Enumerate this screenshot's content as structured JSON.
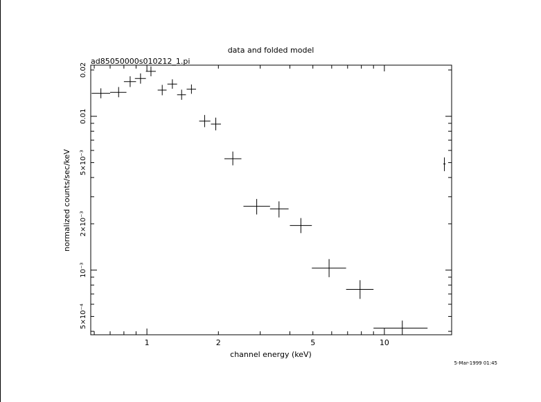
{
  "chart_data": {
    "type": "scatter",
    "title": "data and folded model",
    "subtitle": "ad85050000s010212_1.pi",
    "xlabel": "channel energy (keV)",
    "ylabel": "normalized counts/sec/keV",
    "xscale": "log",
    "yscale": "log",
    "xlim": [
      0.58,
      19.2
    ],
    "ylim": [
      0.00038,
      0.0215
    ],
    "x_ticks": [
      {
        "value": 1,
        "label": "1"
      },
      {
        "value": 2,
        "label": "2"
      },
      {
        "value": 5,
        "label": "5"
      },
      {
        "value": 10,
        "label": "10"
      }
    ],
    "y_ticks": [
      {
        "value": 0.0005,
        "label": "5×10⁻⁴"
      },
      {
        "value": 0.001,
        "label": "10⁻³"
      },
      {
        "value": 0.002,
        "label": "2×10⁻³"
      },
      {
        "value": 0.005,
        "label": "5×10⁻³"
      },
      {
        "value": 0.01,
        "label": "0.01"
      },
      {
        "value": 0.02,
        "label": "0.02"
      }
    ],
    "series": [
      {
        "points": [
          {
            "x": 0.64,
            "xlo": 0.585,
            "xhi": 0.7,
            "y": 0.0141,
            "ylo": 0.0131,
            "yhi": 0.0152
          },
          {
            "x": 0.76,
            "xlo": 0.7,
            "xhi": 0.82,
            "y": 0.0143,
            "ylo": 0.0133,
            "yhi": 0.0155
          },
          {
            "x": 0.85,
            "xlo": 0.8,
            "xhi": 0.9,
            "y": 0.0168,
            "ylo": 0.0155,
            "yhi": 0.0182
          },
          {
            "x": 0.94,
            "xlo": 0.89,
            "xhi": 0.99,
            "y": 0.0176,
            "ylo": 0.0163,
            "yhi": 0.019
          },
          {
            "x": 1.04,
            "xlo": 0.99,
            "xhi": 1.09,
            "y": 0.0196,
            "ylo": 0.0182,
            "yhi": 0.0211
          },
          {
            "x": 1.16,
            "xlo": 1.11,
            "xhi": 1.21,
            "y": 0.0148,
            "ylo": 0.0137,
            "yhi": 0.016
          },
          {
            "x": 1.28,
            "xlo": 1.22,
            "xhi": 1.34,
            "y": 0.0162,
            "ylo": 0.0151,
            "yhi": 0.0174
          },
          {
            "x": 1.4,
            "xlo": 1.34,
            "xhi": 1.46,
            "y": 0.0138,
            "ylo": 0.0128,
            "yhi": 0.0149
          },
          {
            "x": 1.54,
            "xlo": 1.47,
            "xhi": 1.61,
            "y": 0.015,
            "ylo": 0.014,
            "yhi": 0.0161
          },
          {
            "x": 1.75,
            "xlo": 1.66,
            "xhi": 1.85,
            "y": 0.0093,
            "ylo": 0.0085,
            "yhi": 0.0102
          },
          {
            "x": 1.95,
            "xlo": 1.86,
            "xhi": 2.05,
            "y": 0.0089,
            "ylo": 0.0081,
            "yhi": 0.0098
          },
          {
            "x": 2.3,
            "xlo": 2.12,
            "xhi": 2.5,
            "y": 0.0053,
            "ylo": 0.0048,
            "yhi": 0.0059
          },
          {
            "x": 2.9,
            "xlo": 2.55,
            "xhi": 3.3,
            "y": 0.0026,
            "ylo": 0.0023,
            "yhi": 0.0029
          },
          {
            "x": 3.6,
            "xlo": 3.3,
            "xhi": 3.95,
            "y": 0.0025,
            "ylo": 0.0022,
            "yhi": 0.0028
          },
          {
            "x": 4.45,
            "xlo": 4.0,
            "xhi": 4.95,
            "y": 0.00195,
            "ylo": 0.00174,
            "yhi": 0.00218
          },
          {
            "x": 5.85,
            "xlo": 4.95,
            "xhi": 6.9,
            "y": 0.00103,
            "ylo": 0.0009,
            "yhi": 0.00118
          },
          {
            "x": 7.9,
            "xlo": 6.9,
            "xhi": 9.0,
            "y": 0.00075,
            "ylo": 0.00065,
            "yhi": 0.00086
          },
          {
            "x": 11.9,
            "xlo": 9.0,
            "xhi": 15.2,
            "y": 0.00042,
            "ylo": 0.00038,
            "yhi": 0.00047
          },
          {
            "x": 17.9,
            "xlo": 17.7,
            "xhi": 18.1,
            "y": 0.0049,
            "ylo": 0.0044,
            "yhi": 0.0054
          }
        ]
      }
    ],
    "timestamp": "5-Mar-1999 01:45"
  }
}
